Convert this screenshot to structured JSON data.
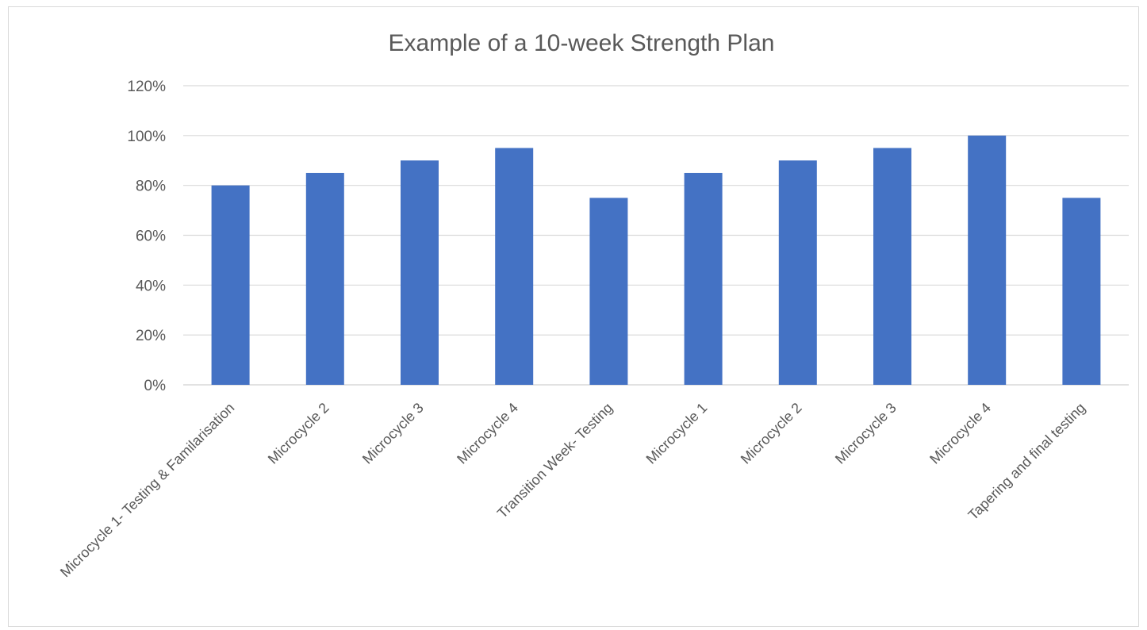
{
  "chart_data": {
    "type": "bar",
    "title": "Example of a 10-week Strength Plan",
    "xlabel": "",
    "ylabel": "",
    "categories": [
      "Microcycle 1- Testing & Familarisation",
      "Microcycle 2",
      "Microcycle 3",
      "Microcycle 4",
      "Transition Week- Testing",
      "Microcycle 1",
      "Microcycle 2",
      "Microcycle 3",
      "Microcycle 4",
      "Tapering and final testing"
    ],
    "values": [
      0.8,
      0.85,
      0.9,
      0.95,
      0.75,
      0.85,
      0.9,
      0.95,
      1.0,
      0.75
    ],
    "ylim": [
      0,
      1.2
    ],
    "yticks": [
      0,
      0.2,
      0.4,
      0.6,
      0.8,
      1.0,
      1.2
    ],
    "ytick_labels": [
      "0%",
      "20%",
      "40%",
      "60%",
      "80%",
      "100%",
      "120%"
    ],
    "grid": true,
    "legend": "none",
    "bar_color": "#4472c4",
    "grid_color": "#d9d9d9"
  }
}
